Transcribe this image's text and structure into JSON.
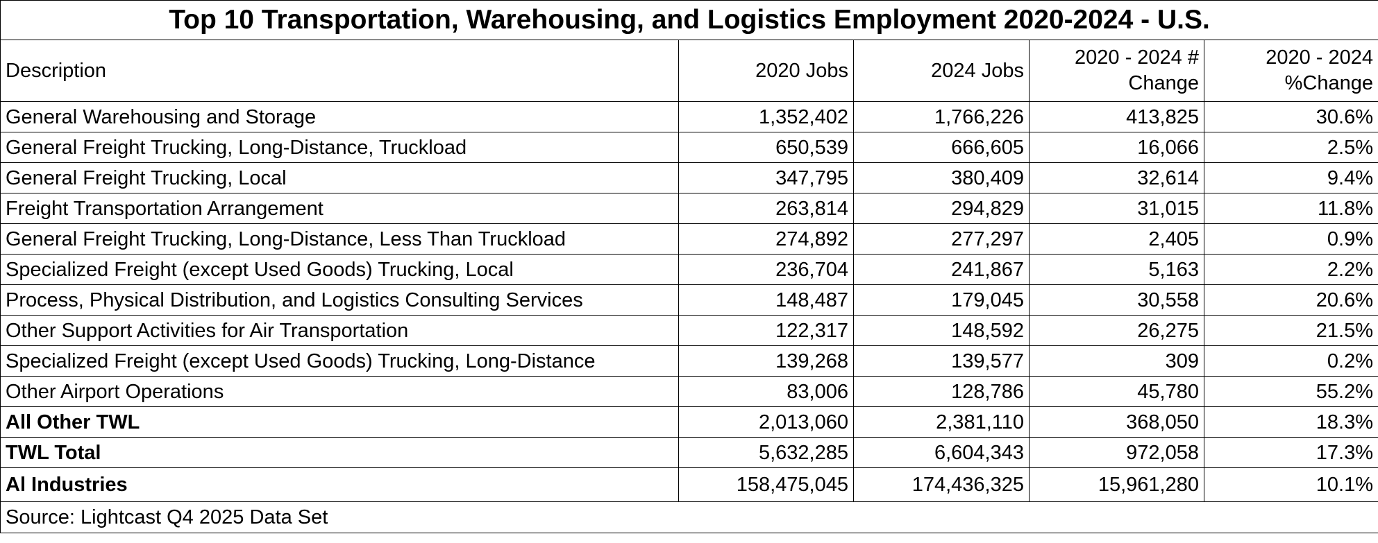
{
  "title": "Top 10 Transportation, Warehousing, and Logistics Employment 2020-2024 - U.S.",
  "headers": {
    "description": "Description",
    "jobs_2020": "2020 Jobs",
    "jobs_2024": "2024 Jobs",
    "change_num": "2020 - 2024 # Change",
    "change_pct": "2020 - 2024 %Change"
  },
  "rows": [
    {
      "description": "General Warehousing and Storage",
      "jobs_2020": "1,352,402",
      "jobs_2024": "1,766,226",
      "change_num": "413,825",
      "change_pct": "30.6%"
    },
    {
      "description": "General Freight Trucking, Long-Distance, Truckload",
      "jobs_2020": "650,539",
      "jobs_2024": "666,605",
      "change_num": "16,066",
      "change_pct": "2.5%"
    },
    {
      "description": "General Freight Trucking, Local",
      "jobs_2020": "347,795",
      "jobs_2024": "380,409",
      "change_num": "32,614",
      "change_pct": "9.4%"
    },
    {
      "description": "Freight Transportation Arrangement",
      "jobs_2020": "263,814",
      "jobs_2024": "294,829",
      "change_num": "31,015",
      "change_pct": "11.8%"
    },
    {
      "description": "General Freight Trucking, Long-Distance, Less Than Truckload",
      "jobs_2020": "274,892",
      "jobs_2024": "277,297",
      "change_num": "2,405",
      "change_pct": "0.9%"
    },
    {
      "description": "Specialized Freight (except Used Goods) Trucking, Local",
      "jobs_2020": "236,704",
      "jobs_2024": "241,867",
      "change_num": "5,163",
      "change_pct": "2.2%"
    },
    {
      "description": "Process, Physical Distribution, and Logistics Consulting Services",
      "jobs_2020": "148,487",
      "jobs_2024": "179,045",
      "change_num": "30,558",
      "change_pct": "20.6%"
    },
    {
      "description": "Other Support Activities for Air Transportation",
      "jobs_2020": "122,317",
      "jobs_2024": "148,592",
      "change_num": "26,275",
      "change_pct": "21.5%"
    },
    {
      "description": "Specialized Freight (except Used Goods) Trucking, Long-Distance",
      "jobs_2020": "139,268",
      "jobs_2024": "139,577",
      "change_num": "309",
      "change_pct": "0.2%"
    },
    {
      "description": "Other Airport Operations",
      "jobs_2020": "83,006",
      "jobs_2024": "128,786",
      "change_num": "45,780",
      "change_pct": "55.2%"
    },
    {
      "description": "All Other TWL",
      "jobs_2020": "2,013,060",
      "jobs_2024": "2,381,110",
      "change_num": "368,050",
      "change_pct": "18.3%"
    },
    {
      "description": "TWL Total",
      "jobs_2020": "5,632,285",
      "jobs_2024": "6,604,343",
      "change_num": "972,058",
      "change_pct": "17.3%"
    },
    {
      "description": "Al Industries",
      "jobs_2020": "158,475,045",
      "jobs_2024": "174,436,325",
      "change_num": "15,961,280",
      "change_pct": "10.1%"
    }
  ],
  "source": "Source: Lightcast Q4 2025 Data Set"
}
